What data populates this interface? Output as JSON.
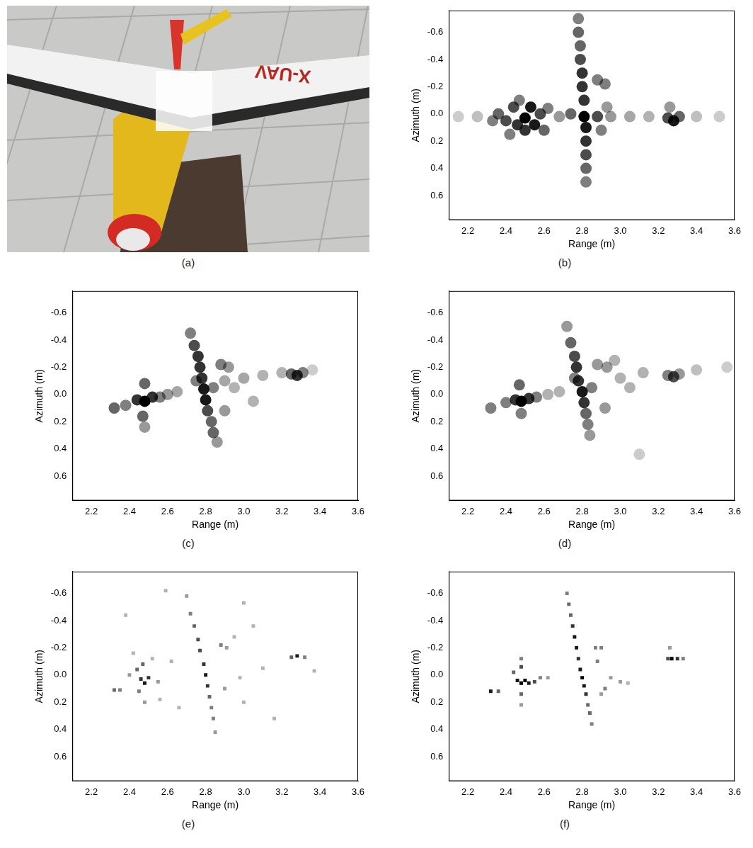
{
  "photo": {
    "caption": "(a)",
    "wing_text": "X-UAV"
  },
  "chart_data": [
    {
      "type": "heatmap",
      "caption": "(b)",
      "x_label": "Range (m)",
      "y_label": "Azimuth (m)",
      "xlim": [
        2.1,
        3.6
      ],
      "ylim": [
        0.78,
        -0.76
      ],
      "xticks": [
        2.2,
        2.4,
        2.6,
        2.8,
        {
          "value": 3,
          "label": "3.0"
        },
        3.2,
        3.4,
        3.6
      ],
      "yticks": [
        -0.6,
        -0.4,
        -0.2,
        {
          "value": 0,
          "label": "0.0"
        },
        0.2,
        0.4,
        0.6
      ],
      "grid": false,
      "marker": "circle",
      "cells": [
        [
          2.33,
          0.05,
          0.5
        ],
        [
          2.36,
          0.0,
          0.6
        ],
        [
          2.4,
          0.05,
          0.7
        ],
        [
          2.44,
          -0.05,
          0.7
        ],
        [
          2.46,
          0.08,
          0.8
        ],
        [
          2.5,
          0.03,
          1.0
        ],
        [
          2.5,
          0.12,
          0.8
        ],
        [
          2.53,
          -0.05,
          0.9
        ],
        [
          2.55,
          0.08,
          0.9
        ],
        [
          2.58,
          0.0,
          0.7
        ],
        [
          2.6,
          0.12,
          0.6
        ],
        [
          2.42,
          0.15,
          0.5
        ],
        [
          2.62,
          -0.04,
          0.5
        ],
        [
          2.47,
          -0.1,
          0.5
        ],
        [
          2.15,
          0.02,
          0.2
        ],
        [
          2.25,
          0.02,
          0.25
        ],
        [
          2.68,
          0.02,
          0.4
        ],
        [
          2.95,
          0.02,
          0.4
        ],
        [
          3.05,
          0.02,
          0.35
        ],
        [
          3.15,
          0.02,
          0.3
        ],
        [
          3.4,
          0.02,
          0.25
        ],
        [
          3.52,
          0.02,
          0.2
        ],
        [
          2.78,
          -0.7,
          0.5
        ],
        [
          2.78,
          -0.6,
          0.6
        ],
        [
          2.79,
          -0.5,
          0.6
        ],
        [
          2.79,
          -0.4,
          0.7
        ],
        [
          2.8,
          -0.3,
          0.8
        ],
        [
          2.8,
          -0.2,
          0.8
        ],
        [
          2.81,
          -0.1,
          0.8
        ],
        [
          2.81,
          0.02,
          1.0
        ],
        [
          2.82,
          0.1,
          0.9
        ],
        [
          2.82,
          0.2,
          0.8
        ],
        [
          2.82,
          0.3,
          0.7
        ],
        [
          2.82,
          0.4,
          0.6
        ],
        [
          2.82,
          0.5,
          0.5
        ],
        [
          2.74,
          0.0,
          0.6
        ],
        [
          2.88,
          0.02,
          0.7
        ],
        [
          2.88,
          -0.25,
          0.5
        ],
        [
          2.92,
          -0.22,
          0.5
        ],
        [
          2.9,
          0.12,
          0.5
        ],
        [
          2.93,
          -0.05,
          0.4
        ],
        [
          3.25,
          0.03,
          0.7
        ],
        [
          3.28,
          0.05,
          0.9
        ],
        [
          3.31,
          0.02,
          0.6
        ],
        [
          3.26,
          -0.05,
          0.4
        ]
      ]
    },
    {
      "type": "heatmap",
      "caption": "(c)",
      "x_label": "Range (m)",
      "y_label": "Azimuth (m)",
      "xlim": [
        2.1,
        3.6
      ],
      "ylim": [
        0.78,
        -0.76
      ],
      "xticks": [
        2.2,
        2.4,
        2.6,
        2.8,
        {
          "value": 3,
          "label": "3.0"
        },
        3.2,
        3.4,
        3.6
      ],
      "yticks": [
        -0.6,
        -0.4,
        -0.2,
        {
          "value": 0,
          "label": "0.0"
        },
        0.2,
        0.4,
        0.6
      ],
      "grid": false,
      "marker": "circle",
      "cells": [
        [
          2.32,
          0.1,
          0.6
        ],
        [
          2.38,
          0.08,
          0.5
        ],
        [
          2.44,
          0.04,
          0.8
        ],
        [
          2.48,
          0.05,
          1.0
        ],
        [
          2.52,
          0.02,
          0.8
        ],
        [
          2.48,
          -0.08,
          0.6
        ],
        [
          2.47,
          0.16,
          0.6
        ],
        [
          2.48,
          0.24,
          0.4
        ],
        [
          2.56,
          0.02,
          0.5
        ],
        [
          2.6,
          0.0,
          0.4
        ],
        [
          2.65,
          -0.02,
          0.35
        ],
        [
          2.9,
          -0.1,
          0.35
        ],
        [
          3.0,
          -0.12,
          0.35
        ],
        [
          3.1,
          -0.14,
          0.3
        ],
        [
          3.2,
          -0.16,
          0.3
        ],
        [
          3.36,
          -0.18,
          0.2
        ],
        [
          2.72,
          -0.45,
          0.5
        ],
        [
          2.74,
          -0.36,
          0.7
        ],
        [
          2.76,
          -0.28,
          0.8
        ],
        [
          2.77,
          -0.2,
          0.8
        ],
        [
          2.78,
          -0.12,
          0.8
        ],
        [
          2.79,
          -0.04,
          0.9
        ],
        [
          2.8,
          0.04,
          0.9
        ],
        [
          2.81,
          0.12,
          0.7
        ],
        [
          2.83,
          0.2,
          0.6
        ],
        [
          2.84,
          0.28,
          0.6
        ],
        [
          2.86,
          0.35,
          0.4
        ],
        [
          2.75,
          -0.1,
          0.5
        ],
        [
          2.84,
          -0.05,
          0.5
        ],
        [
          2.88,
          -0.22,
          0.5
        ],
        [
          2.92,
          -0.2,
          0.4
        ],
        [
          2.9,
          0.12,
          0.4
        ],
        [
          2.95,
          -0.05,
          0.3
        ],
        [
          3.05,
          0.05,
          0.3
        ],
        [
          3.25,
          -0.15,
          0.6
        ],
        [
          3.28,
          -0.14,
          0.8
        ],
        [
          3.31,
          -0.16,
          0.5
        ]
      ]
    },
    {
      "type": "heatmap",
      "caption": "(d)",
      "x_label": "Range (m)",
      "y_label": "Azimuth (m)",
      "xlim": [
        2.1,
        3.6
      ],
      "ylim": [
        0.78,
        -0.76
      ],
      "xticks": [
        2.2,
        2.4,
        2.6,
        2.8,
        {
          "value": 3,
          "label": "3.0"
        },
        3.2,
        3.4,
        3.6
      ],
      "yticks": [
        -0.6,
        -0.4,
        -0.2,
        {
          "value": 0,
          "label": "0.0"
        },
        0.2,
        0.4,
        0.6
      ],
      "grid": false,
      "marker": "circle",
      "cells": [
        [
          2.32,
          0.1,
          0.5
        ],
        [
          2.4,
          0.06,
          0.5
        ],
        [
          2.45,
          0.04,
          0.8
        ],
        [
          2.48,
          0.05,
          1.0
        ],
        [
          2.52,
          0.03,
          0.8
        ],
        [
          2.47,
          -0.07,
          0.6
        ],
        [
          2.48,
          0.14,
          0.5
        ],
        [
          2.56,
          0.02,
          0.5
        ],
        [
          2.62,
          0.0,
          0.3
        ],
        [
          2.68,
          -0.02,
          0.3
        ],
        [
          3.0,
          -0.12,
          0.3
        ],
        [
          3.12,
          -0.16,
          0.3
        ],
        [
          3.4,
          -0.18,
          0.25
        ],
        [
          3.56,
          -0.2,
          0.2
        ],
        [
          2.72,
          -0.5,
          0.4
        ],
        [
          2.74,
          -0.38,
          0.6
        ],
        [
          2.76,
          -0.28,
          0.7
        ],
        [
          2.77,
          -0.2,
          0.8
        ],
        [
          2.78,
          -0.1,
          0.8
        ],
        [
          2.8,
          -0.02,
          0.9
        ],
        [
          2.81,
          0.06,
          0.8
        ],
        [
          2.82,
          0.14,
          0.6
        ],
        [
          2.83,
          0.22,
          0.5
        ],
        [
          2.84,
          0.3,
          0.4
        ],
        [
          2.76,
          -0.12,
          0.5
        ],
        [
          2.85,
          -0.05,
          0.5
        ],
        [
          2.88,
          -0.22,
          0.4
        ],
        [
          2.93,
          -0.2,
          0.4
        ],
        [
          2.97,
          -0.25,
          0.3
        ],
        [
          2.92,
          0.1,
          0.4
        ],
        [
          3.05,
          -0.05,
          0.3
        ],
        [
          3.1,
          0.44,
          0.2
        ],
        [
          3.25,
          -0.14,
          0.5
        ],
        [
          3.28,
          -0.13,
          0.7
        ],
        [
          3.31,
          -0.15,
          0.4
        ]
      ]
    },
    {
      "type": "heatmap",
      "caption": "(e)",
      "x_label": "Range (m)",
      "y_label": "Azimuth (m)",
      "xlim": [
        2.1,
        3.6
      ],
      "ylim": [
        0.78,
        -0.76
      ],
      "xticks": [
        2.2,
        2.4,
        2.6,
        2.8,
        {
          "value": 3,
          "label": "3.0"
        },
        3.2,
        3.4,
        3.6
      ],
      "yticks": [
        -0.6,
        -0.4,
        -0.2,
        {
          "value": 0,
          "label": "0.0"
        },
        0.2,
        0.4,
        0.6
      ],
      "grid": false,
      "marker": "rect",
      "cells": [
        [
          2.32,
          0.11,
          0.6
        ],
        [
          2.35,
          0.11,
          0.5
        ],
        [
          2.4,
          0.0,
          0.4
        ],
        [
          2.44,
          -0.04,
          0.6
        ],
        [
          2.46,
          0.03,
          0.8
        ],
        [
          2.48,
          0.06,
          0.9
        ],
        [
          2.5,
          0.02,
          0.8
        ],
        [
          2.47,
          -0.08,
          0.6
        ],
        [
          2.45,
          0.12,
          0.5
        ],
        [
          2.48,
          0.2,
          0.4
        ],
        [
          2.52,
          -0.12,
          0.3
        ],
        [
          2.55,
          0.05,
          0.4
        ],
        [
          2.42,
          -0.16,
          0.3
        ],
        [
          2.38,
          -0.44,
          0.3
        ],
        [
          2.59,
          -0.62,
          0.3
        ],
        [
          2.56,
          0.18,
          0.3
        ],
        [
          2.62,
          -0.1,
          0.3
        ],
        [
          2.66,
          0.24,
          0.3
        ],
        [
          2.7,
          -0.58,
          0.4
        ],
        [
          2.72,
          -0.45,
          0.5
        ],
        [
          2.74,
          -0.36,
          0.6
        ],
        [
          2.76,
          -0.26,
          0.7
        ],
        [
          2.77,
          -0.18,
          0.7
        ],
        [
          2.79,
          -0.08,
          0.8
        ],
        [
          2.8,
          0.0,
          0.9
        ],
        [
          2.81,
          0.08,
          0.8
        ],
        [
          2.82,
          0.16,
          0.6
        ],
        [
          2.83,
          0.24,
          0.5
        ],
        [
          2.84,
          0.32,
          0.5
        ],
        [
          2.85,
          0.42,
          0.4
        ],
        [
          2.88,
          -0.22,
          0.5
        ],
        [
          2.91,
          -0.2,
          0.4
        ],
        [
          2.95,
          -0.28,
          0.3
        ],
        [
          2.9,
          0.1,
          0.4
        ],
        [
          2.98,
          0.02,
          0.3
        ],
        [
          3.0,
          -0.53,
          0.3
        ],
        [
          3.05,
          -0.36,
          0.3
        ],
        [
          3.1,
          -0.05,
          0.3
        ],
        [
          3.16,
          0.32,
          0.3
        ],
        [
          3.0,
          0.2,
          0.3
        ],
        [
          3.25,
          -0.13,
          0.6
        ],
        [
          3.28,
          -0.14,
          0.9
        ],
        [
          3.32,
          -0.13,
          0.5
        ],
        [
          3.37,
          -0.03,
          0.3
        ]
      ]
    },
    {
      "type": "heatmap",
      "caption": "(f)",
      "x_label": "Range (m)",
      "y_label": "Azimuth (m)",
      "xlim": [
        2.1,
        3.6
      ],
      "ylim": [
        0.78,
        -0.76
      ],
      "xticks": [
        2.2,
        2.4,
        2.6,
        2.8,
        {
          "value": 3,
          "label": "3.0"
        },
        3.2,
        3.4,
        3.6
      ],
      "yticks": [
        -0.6,
        -0.4,
        -0.2,
        {
          "value": 0,
          "label": "0.0"
        },
        0.2,
        0.4,
        0.6
      ],
      "grid": false,
      "marker": "rect",
      "cells": [
        [
          2.32,
          0.12,
          0.9
        ],
        [
          2.36,
          0.12,
          0.6
        ],
        [
          2.44,
          -0.02,
          0.6
        ],
        [
          2.46,
          0.04,
          0.9
        ],
        [
          2.48,
          0.06,
          1.0
        ],
        [
          2.5,
          0.04,
          1.0
        ],
        [
          2.52,
          0.06,
          0.9
        ],
        [
          2.48,
          -0.06,
          0.7
        ],
        [
          2.48,
          -0.12,
          0.5
        ],
        [
          2.48,
          0.14,
          0.6
        ],
        [
          2.48,
          0.22,
          0.4
        ],
        [
          2.55,
          0.05,
          0.7
        ],
        [
          2.58,
          0.02,
          0.5
        ],
        [
          2.62,
          0.02,
          0.4
        ],
        [
          2.72,
          -0.6,
          0.5
        ],
        [
          2.73,
          -0.52,
          0.6
        ],
        [
          2.74,
          -0.44,
          0.6
        ],
        [
          2.75,
          -0.36,
          0.8
        ],
        [
          2.76,
          -0.28,
          0.9
        ],
        [
          2.77,
          -0.2,
          0.9
        ],
        [
          2.78,
          -0.12,
          0.8
        ],
        [
          2.79,
          -0.04,
          0.9
        ],
        [
          2.8,
          0.02,
          1.0
        ],
        [
          2.81,
          0.08,
          0.9
        ],
        [
          2.82,
          0.14,
          0.8
        ],
        [
          2.83,
          0.22,
          0.6
        ],
        [
          2.84,
          0.28,
          0.6
        ],
        [
          2.85,
          0.36,
          0.5
        ],
        [
          2.87,
          -0.2,
          0.5
        ],
        [
          2.9,
          -0.2,
          0.5
        ],
        [
          2.88,
          -0.1,
          0.5
        ],
        [
          2.92,
          0.1,
          0.5
        ],
        [
          2.9,
          0.14,
          0.4
        ],
        [
          2.95,
          0.02,
          0.4
        ],
        [
          3.0,
          0.05,
          0.4
        ],
        [
          3.04,
          0.06,
          0.3
        ],
        [
          3.25,
          -0.12,
          0.7
        ],
        [
          3.27,
          -0.12,
          1.0
        ],
        [
          3.3,
          -0.12,
          0.8
        ],
        [
          3.33,
          -0.12,
          0.5
        ],
        [
          3.26,
          -0.2,
          0.4
        ]
      ]
    }
  ]
}
